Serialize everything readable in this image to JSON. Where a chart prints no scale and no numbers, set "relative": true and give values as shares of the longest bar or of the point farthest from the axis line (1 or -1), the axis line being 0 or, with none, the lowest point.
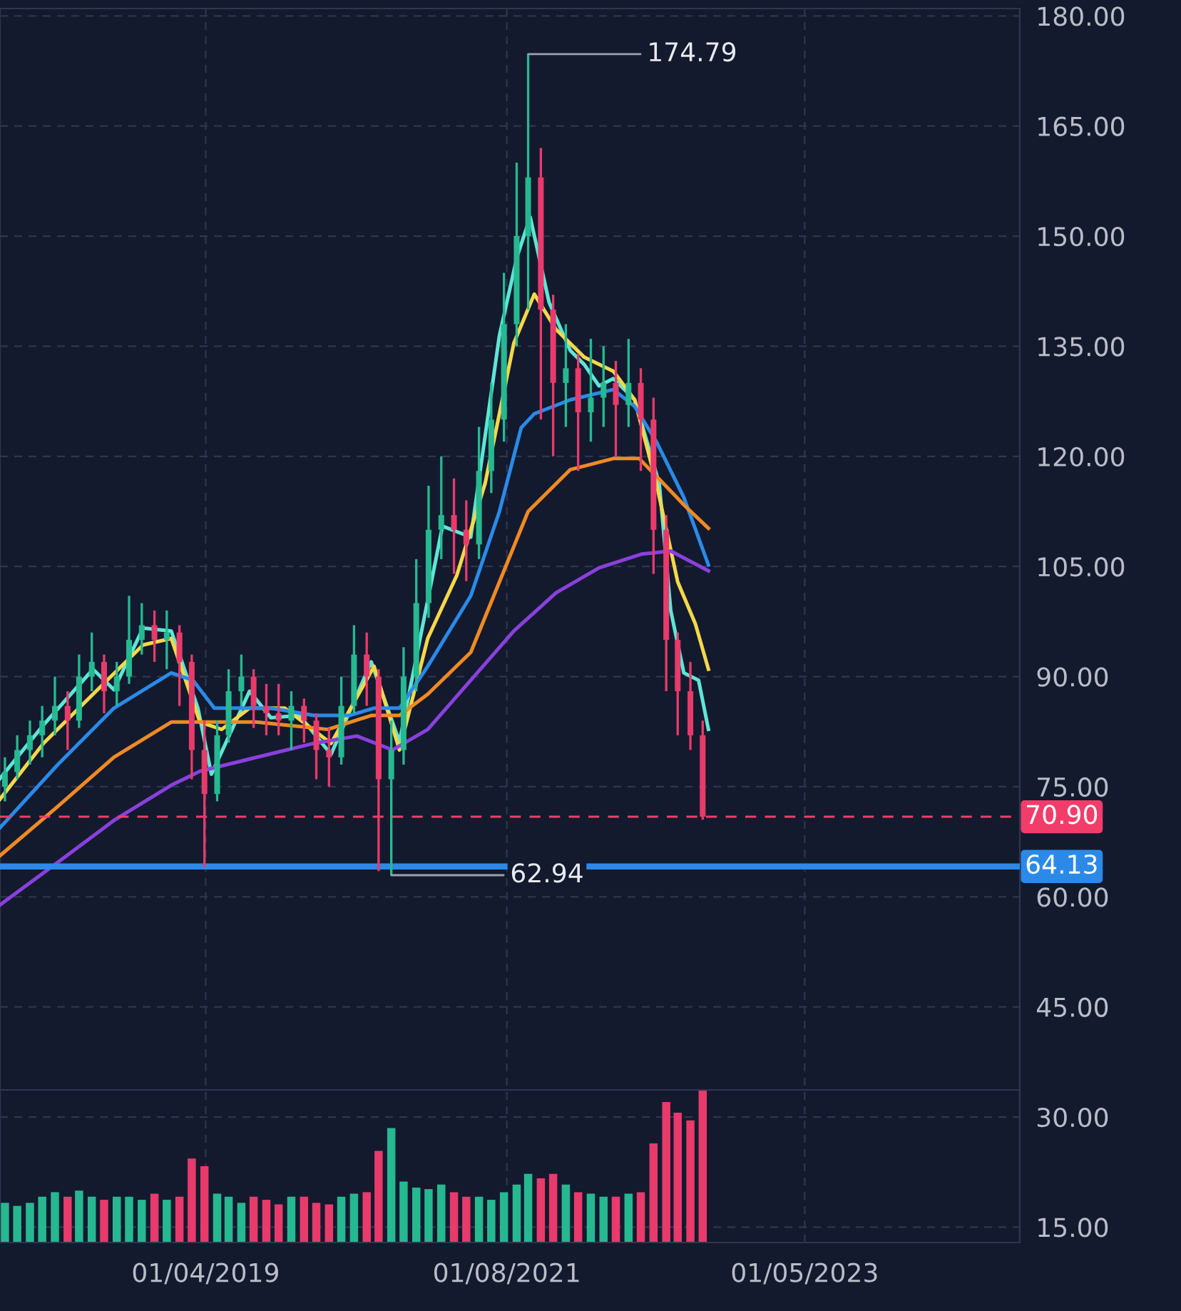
{
  "chart_data": [
    {
      "type": "candlestick",
      "x": [
        "2017-09-01",
        "2017-10-01",
        "2017-11-01",
        "2017-12-01",
        "2018-01-01",
        "2018-02-01",
        "2018-03-01",
        "2018-04-01",
        "2018-05-01",
        "2018-06-01",
        "2018-07-01",
        "2018-08-01",
        "2018-09-01",
        "2018-10-01",
        "2018-11-01",
        "2018-12-01",
        "2019-01-01",
        "2019-02-01",
        "2019-03-01",
        "2019-04-01",
        "2019-05-01",
        "2019-06-01",
        "2019-07-01",
        "2019-08-01",
        "2019-09-01",
        "2019-10-01",
        "2019-11-01",
        "2019-12-01",
        "2020-01-01",
        "2020-02-01",
        "2020-03-01",
        "2020-04-01",
        "2020-05-01",
        "2020-06-01",
        "2020-07-01",
        "2020-08-01",
        "2020-09-01",
        "2020-10-01",
        "2020-11-01",
        "2020-12-01",
        "2021-01-01",
        "2021-02-01",
        "2021-03-01",
        "2021-04-01",
        "2021-05-01",
        "2021-06-01",
        "2021-07-01",
        "2021-08-01",
        "2021-09-01",
        "2021-10-01",
        "2021-11-01",
        "2021-12-01",
        "2022-01-01",
        "2022-02-01",
        "2022-03-01",
        "2022-04-01",
        "2022-05-01"
      ],
      "ohlc": [
        [
          75,
          79,
          73,
          77
        ],
        [
          77,
          82,
          76,
          80
        ],
        [
          80,
          84,
          78,
          82
        ],
        [
          82,
          86,
          79,
          84
        ],
        [
          84,
          90,
          82,
          86
        ],
        [
          86,
          88,
          80,
          84
        ],
        [
          84,
          93,
          83,
          90
        ],
        [
          90,
          96,
          88,
          92
        ],
        [
          92,
          93,
          85,
          88
        ],
        [
          88,
          92,
          86,
          90
        ],
        [
          90,
          101,
          89,
          95
        ],
        [
          95,
          100,
          93,
          97
        ],
        [
          97,
          99,
          92,
          95
        ],
        [
          95,
          99,
          91,
          96
        ],
        [
          96,
          97,
          86,
          92
        ],
        [
          92,
          93,
          76,
          80
        ],
        [
          80,
          84,
          64,
          74
        ],
        [
          74,
          84,
          73,
          82
        ],
        [
          82,
          91,
          81,
          88
        ],
        [
          88,
          93,
          86,
          90
        ],
        [
          90,
          91,
          83,
          86
        ],
        [
          86,
          89,
          82,
          85
        ],
        [
          85,
          89,
          82,
          84
        ],
        [
          84,
          88,
          80,
          86
        ],
        [
          86,
          87,
          81,
          84
        ],
        [
          84,
          85,
          76,
          80
        ],
        [
          80,
          83,
          75,
          79
        ],
        [
          79,
          90,
          78,
          86
        ],
        [
          86,
          97,
          85,
          93
        ],
        [
          93,
          96,
          86,
          90
        ],
        [
          90,
          91,
          63.5,
          76
        ],
        [
          76,
          84,
          62.94,
          80
        ],
        [
          80,
          94,
          78,
          90
        ],
        [
          90,
          106,
          88,
          100
        ],
        [
          100,
          116,
          98,
          110
        ],
        [
          110,
          120,
          106,
          112
        ],
        [
          112,
          117,
          104,
          110
        ],
        [
          110,
          114,
          103,
          108
        ],
        [
          108,
          124,
          106,
          118
        ],
        [
          118,
          130,
          115,
          125
        ],
        [
          125,
          145,
          122,
          138
        ],
        [
          138,
          160,
          135,
          150
        ],
        [
          150,
          174.79,
          140,
          158
        ],
        [
          158,
          162,
          125,
          140
        ],
        [
          140,
          142,
          120,
          130
        ],
        [
          130,
          138,
          124,
          132
        ],
        [
          132,
          134,
          118,
          126
        ],
        [
          126,
          136,
          122,
          128
        ],
        [
          128,
          135,
          124,
          130
        ],
        [
          130,
          133,
          120,
          127
        ],
        [
          127,
          136,
          124,
          130
        ],
        [
          130,
          132,
          118,
          125
        ],
        [
          125,
          128,
          104,
          110
        ],
        [
          110,
          112,
          88,
          95
        ],
        [
          95,
          96,
          82,
          88
        ],
        [
          88,
          92,
          80,
          82
        ],
        [
          82,
          84,
          70.5,
          70.9
        ]
      ],
      "colors": [
        "#26b891",
        "#26b891",
        "#26b891",
        "#26b891",
        "#26b891",
        "#e83a6b",
        "#26b891",
        "#26b891",
        "#e83a6b",
        "#26b891",
        "#26b891",
        "#26b891",
        "#e83a6b",
        "#26b891",
        "#e83a6b",
        "#e83a6b",
        "#e83a6b",
        "#26b891",
        "#26b891",
        "#26b891",
        "#e83a6b",
        "#e83a6b",
        "#e83a6b",
        "#26b891",
        "#e83a6b",
        "#e83a6b",
        "#e83a6b",
        "#26b891",
        "#26b891",
        "#e83a6b",
        "#e83a6b",
        "#26b891",
        "#26b891",
        "#26b891",
        "#26b891",
        "#26b891",
        "#e83a6b",
        "#e83a6b",
        "#26b891",
        "#26b891",
        "#26b891",
        "#26b891",
        "#26b891",
        "#e83a6b",
        "#e83a6b",
        "#26b891",
        "#e83a6b",
        "#26b891",
        "#26b891",
        "#e83a6b",
        "#26b891",
        "#e83a6b",
        "#e83a6b",
        "#e83a6b",
        "#e83a6b",
        "#e83a6b",
        "#e83a6b"
      ],
      "series": [
        {
          "type": "line",
          "color": "#5ee6d6",
          "x": [
            "2017-08-20",
            "2017-12-04",
            "2018-04-04",
            "2018-05-25",
            "2018-08-04",
            "2018-10-12",
            "2018-12-16",
            "2019-01-18",
            "2019-04-21",
            "2019-06-12",
            "2019-08-21",
            "2019-11-06",
            "2020-02-12",
            "2020-04-21",
            "2020-08-04",
            "2020-10-12",
            "2020-12-21",
            "2021-02-02",
            "2021-03-06",
            "2021-04-21",
            "2021-06-12",
            "2021-07-16",
            "2021-08-21",
            "2021-09-25",
            "2021-11-16",
            "2022-01-15",
            "2022-02-12",
            "2022-03-16",
            "2022-04-21",
            "2022-05-15"
          ],
          "values": [
            76.1,
            83.4,
            91.0,
            88.2,
            96.6,
            96.2,
            85.7,
            76.7,
            88.0,
            84.4,
            84.7,
            79.4,
            92.0,
            81.1,
            110.5,
            109.0,
            136.5,
            147.2,
            152.6,
            141.0,
            134.4,
            132.5,
            129.6,
            130.6,
            127.7,
            116.3,
            99.0,
            90.5,
            89.5,
            82.8
          ]
        },
        {
          "type": "line",
          "color": "#f5d84a",
          "x": [
            "2017-08-20",
            "2017-12-04",
            "2018-04-04",
            "2018-08-04",
            "2018-10-12",
            "2018-12-21",
            "2019-02-12",
            "2019-04-21",
            "2019-07-16",
            "2019-11-06",
            "2020-02-19",
            "2020-04-21",
            "2020-06-29",
            "2020-09-08",
            "2020-11-16",
            "2021-01-25",
            "2021-03-16",
            "2021-05-08",
            "2021-07-16",
            "2021-09-25",
            "2021-11-16",
            "2022-01-08",
            "2022-03-01",
            "2022-04-13",
            "2022-05-15"
          ],
          "values": [
            73.3,
            80.9,
            87.6,
            94.3,
            95.2,
            83.8,
            82.8,
            85.7,
            85.7,
            80.9,
            91.4,
            80.0,
            95.2,
            103.8,
            116.3,
            135.4,
            142.1,
            137.3,
            133.5,
            131.6,
            127.7,
            116.3,
            102.9,
            97.2,
            91.0
          ]
        },
        {
          "type": "line",
          "color": "#2a8ae8",
          "x": [
            "2017-08-20",
            "2018-01-08",
            "2018-05-25",
            "2018-10-12",
            "2018-12-04",
            "2019-01-25",
            "2019-06-12",
            "2019-09-25",
            "2019-12-21",
            "2020-02-19",
            "2020-04-21",
            "2020-06-29",
            "2020-10-12",
            "2020-12-21",
            "2021-02-12",
            "2021-03-16",
            "2021-06-12",
            "2021-09-25",
            "2021-11-16",
            "2022-01-08",
            "2022-03-16",
            "2022-05-15"
          ],
          "values": [
            69.4,
            78.0,
            85.7,
            90.5,
            89.5,
            85.7,
            85.7,
            84.7,
            84.7,
            85.7,
            85.7,
            91.4,
            101.0,
            112.5,
            123.9,
            125.8,
            127.7,
            129.1,
            126.8,
            122.0,
            114.4,
            105.2
          ]
        },
        {
          "type": "line",
          "color": "#f08a24",
          "x": [
            "2017-08-20",
            "2018-01-08",
            "2018-05-25",
            "2018-10-12",
            "2018-12-04",
            "2019-05-08",
            "2019-10-29",
            "2020-02-12",
            "2020-04-21",
            "2020-06-29",
            "2020-10-12",
            "2020-12-21",
            "2021-03-01",
            "2021-06-12",
            "2021-09-25",
            "2021-11-27",
            "2022-01-25",
            "2022-03-16",
            "2022-05-15"
          ],
          "values": [
            65.6,
            72.3,
            79.0,
            83.8,
            83.8,
            83.8,
            82.8,
            84.7,
            84.7,
            87.6,
            93.3,
            102.9,
            112.5,
            118.2,
            119.7,
            119.7,
            116.3,
            113.4,
            110.2
          ]
        },
        {
          "type": "line",
          "color": "#8a40dc",
          "x": [
            "2017-08-20",
            "2018-01-08",
            "2018-05-25",
            "2018-10-12",
            "2018-12-21",
            "2019-05-08",
            "2019-09-25",
            "2020-01-08",
            "2020-04-04",
            "2020-06-29",
            "2020-10-12",
            "2021-01-25",
            "2021-05-08",
            "2021-08-21",
            "2021-12-04",
            "2022-02-12",
            "2022-05-15"
          ],
          "values": [
            58.9,
            64.7,
            70.4,
            75.2,
            77.1,
            79.0,
            80.9,
            81.9,
            80.0,
            82.8,
            89.5,
            96.2,
            101.4,
            104.8,
            106.7,
            107.1,
            104.4
          ]
        }
      ],
      "xlim": [
        "2017-08-20",
        "2024-06-13"
      ],
      "xticks": [
        {
          "value": "2019-01-04",
          "label": "01/04/2019"
        },
        {
          "value": "2021-01-08",
          "label": "01/08/2021"
        },
        {
          "value": "2023-01-05",
          "label": "01/05/2023"
        }
      ],
      "ylim": [
        12.9,
        181
      ],
      "yticks": [
        {
          "value": 15,
          "label": "15.00"
        },
        {
          "value": 30,
          "label": "30.00"
        },
        {
          "value": 45,
          "label": "45.00"
        },
        {
          "value": 60,
          "label": "60.00"
        },
        {
          "value": 75,
          "label": "75.00"
        },
        {
          "value": 90,
          "label": "90.00"
        },
        {
          "value": 105,
          "label": "105.00"
        },
        {
          "value": 120,
          "label": "120.00"
        },
        {
          "value": 135,
          "label": "135.00"
        },
        {
          "value": 150,
          "label": "150.00"
        },
        {
          "value": 165,
          "label": "165.00"
        },
        {
          "value": 180,
          "label": "180.00"
        }
      ],
      "grid": true,
      "ref_lines": [
        {
          "axis": "y",
          "value": 70.9,
          "label": "70.90",
          "color": "#f23d6b",
          "line_style": "dashed"
        },
        {
          "axis": "y",
          "value": 64.13,
          "label": "64.13",
          "color": "#2b8ae8",
          "line_style": "solid"
        }
      ],
      "annotations": [
        {
          "text": "174.79",
          "x": "2021-03-01",
          "y": 174.79
        },
        {
          "text": "62.94",
          "x": "2020-04-01",
          "y": 62.94
        }
      ]
    },
    {
      "type": "bar",
      "relative": true,
      "tick_labels": false,
      "x": [
        "2017-09-01",
        "2017-10-01",
        "2017-11-01",
        "2017-12-01",
        "2018-01-01",
        "2018-02-01",
        "2018-03-01",
        "2018-04-01",
        "2018-05-01",
        "2018-06-01",
        "2018-07-01",
        "2018-08-01",
        "2018-09-01",
        "2018-10-01",
        "2018-11-01",
        "2018-12-01",
        "2019-01-01",
        "2019-02-01",
        "2019-03-01",
        "2019-04-01",
        "2019-05-01",
        "2019-06-01",
        "2019-07-01",
        "2019-08-01",
        "2019-09-01",
        "2019-10-01",
        "2019-11-01",
        "2019-12-01",
        "2020-01-01",
        "2020-02-01",
        "2020-03-01",
        "2020-04-01",
        "2020-05-01",
        "2020-06-01",
        "2020-07-01",
        "2020-08-01",
        "2020-09-01",
        "2020-10-01",
        "2020-11-01",
        "2020-12-01",
        "2021-01-01",
        "2021-02-01",
        "2021-03-01",
        "2021-04-01",
        "2021-05-01",
        "2021-06-01",
        "2021-07-01",
        "2021-08-01",
        "2021-09-01",
        "2021-10-01",
        "2021-11-01",
        "2021-12-01",
        "2022-01-01",
        "2022-02-01",
        "2022-03-01",
        "2022-04-01",
        "2022-05-01"
      ],
      "values": [
        0.26,
        0.24,
        0.26,
        0.3,
        0.33,
        0.3,
        0.34,
        0.3,
        0.28,
        0.3,
        0.3,
        0.28,
        0.32,
        0.28,
        0.3,
        0.55,
        0.5,
        0.32,
        0.3,
        0.26,
        0.3,
        0.28,
        0.25,
        0.3,
        0.3,
        0.26,
        0.25,
        0.3,
        0.32,
        0.33,
        0.6,
        0.75,
        0.4,
        0.36,
        0.35,
        0.38,
        0.33,
        0.3,
        0.3,
        0.28,
        0.33,
        0.38,
        0.45,
        0.42,
        0.45,
        0.38,
        0.33,
        0.32,
        0.3,
        0.3,
        0.32,
        0.33,
        0.65,
        0.92,
        0.85,
        0.8,
        1.0
      ],
      "colors": [
        "#26b891",
        "#26b891",
        "#26b891",
        "#26b891",
        "#26b891",
        "#e83a6b",
        "#26b891",
        "#26b891",
        "#e83a6b",
        "#26b891",
        "#26b891",
        "#26b891",
        "#e83a6b",
        "#26b891",
        "#e83a6b",
        "#e83a6b",
        "#e83a6b",
        "#26b891",
        "#26b891",
        "#26b891",
        "#e83a6b",
        "#e83a6b",
        "#e83a6b",
        "#26b891",
        "#e83a6b",
        "#e83a6b",
        "#e83a6b",
        "#26b891",
        "#26b891",
        "#e83a6b",
        "#e83a6b",
        "#26b891",
        "#26b891",
        "#26b891",
        "#26b891",
        "#26b891",
        "#e83a6b",
        "#e83a6b",
        "#26b891",
        "#26b891",
        "#26b891",
        "#26b891",
        "#26b891",
        "#e83a6b",
        "#e83a6b",
        "#26b891",
        "#e83a6b",
        "#26b891",
        "#26b891",
        "#e83a6b",
        "#26b891",
        "#e83a6b",
        "#e83a6b",
        "#e83a6b",
        "#e83a6b",
        "#e83a6b",
        "#e83a6b"
      ],
      "xlim": [
        "2017-08-20",
        "2024-06-13"
      ]
    }
  ]
}
